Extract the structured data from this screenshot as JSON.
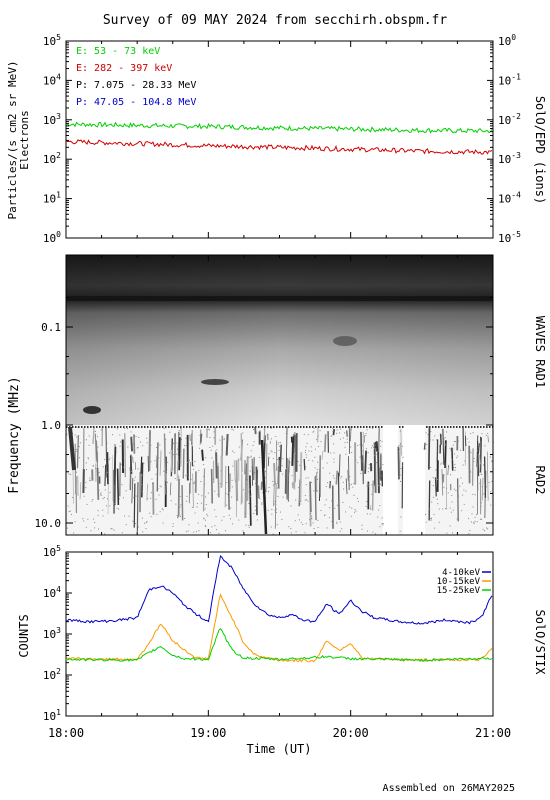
{
  "title": "Survey of 09 MAY 2024 from secchirh.obspm.fr",
  "footer": "Assembled on 26MAY2025",
  "colors": {
    "green": "#00d000",
    "red": "#d00000",
    "black": "#000000",
    "blue": "#0000c8",
    "orange": "#ff9900"
  },
  "chart_data": [
    {
      "type": "line",
      "name": "epd",
      "ylabel": "Particles/(s cm2 sr MeV)",
      "ylabel2": "Electrons",
      "right_label": "SolO/EPD (ions)",
      "yscale": "log",
      "ylim": [
        1,
        100000
      ],
      "y_ticks": [
        1,
        10,
        100,
        1000,
        10000,
        100000
      ],
      "y_tick_labels": [
        {
          "base": "10",
          "exp": "0"
        },
        {
          "base": "10",
          "exp": "1"
        },
        {
          "base": "10",
          "exp": "2"
        },
        {
          "base": "10",
          "exp": "3"
        },
        {
          "base": "10",
          "exp": "4"
        },
        {
          "base": "10",
          "exp": "5"
        }
      ],
      "y2_ticks": [
        1e-05,
        0.0001,
        0.001,
        0.01,
        0.1,
        1
      ],
      "y2_tick_labels": [
        {
          "base": "10",
          "exp": "-5"
        },
        {
          "base": "10",
          "exp": "-4"
        },
        {
          "base": "10",
          "exp": "-3"
        },
        {
          "base": "10",
          "exp": "-2"
        },
        {
          "base": "10",
          "exp": "-1"
        },
        {
          "base": "10",
          "exp": "0"
        }
      ],
      "legend": [
        {
          "text": "E: 53 - 73 keV",
          "color": "#00d000"
        },
        {
          "text": "E: 282 - 397 keV",
          "color": "#d00000"
        },
        {
          "text": "P: 7.075 - 28.33 MeV",
          "color": "#000000"
        },
        {
          "text": "P: 47.05 - 104.8 MeV",
          "color": "#0000c8"
        }
      ],
      "series": [
        {
          "name": "E: 53 - 73 keV",
          "color": "#00d000",
          "x": [
            "18:00",
            "18:30",
            "19:00",
            "19:30",
            "20:00",
            "20:30",
            "21:00"
          ],
          "values": [
            780,
            720,
            680,
            620,
            580,
            540,
            520
          ]
        },
        {
          "name": "E: 282 - 397 keV",
          "color": "#d00000",
          "x": [
            "18:00",
            "18:30",
            "19:00",
            "19:30",
            "20:00",
            "20:30",
            "21:00"
          ],
          "values": [
            280,
            250,
            220,
            200,
            180,
            160,
            150
          ]
        }
      ]
    },
    {
      "type": "heatmap",
      "name": "waves",
      "ylabel": "Frequency (MHz)",
      "right_label_top": "WAVES RAD1",
      "right_label_bottom": "RAD2",
      "yscale": "log",
      "y_ticks": [
        0.1,
        1.0,
        10.0
      ],
      "y_tick_labels": [
        "0.1",
        "1.0",
        "10.0"
      ]
    },
    {
      "type": "line",
      "name": "stix",
      "ylabel": "COUNTS",
      "right_label": "SolO/STIX",
      "yscale": "log",
      "ylim": [
        10,
        100000
      ],
      "y_ticks": [
        10,
        100,
        1000,
        10000,
        100000
      ],
      "y_tick_labels": [
        {
          "base": "10",
          "exp": "1"
        },
        {
          "base": "10",
          "exp": "2"
        },
        {
          "base": "10",
          "exp": "3"
        },
        {
          "base": "10",
          "exp": "4"
        },
        {
          "base": "10",
          "exp": "5"
        }
      ],
      "xlabel": "Time (UT)",
      "x_tick_labels": [
        "18:00",
        "19:00",
        "20:00",
        "21:00"
      ],
      "legend": [
        {
          "text": "4-10keV",
          "color": "#0000c8"
        },
        {
          "text": "10-15keV",
          "color": "#ff9900"
        },
        {
          "text": "15-25keV",
          "color": "#00d000"
        }
      ],
      "series": [
        {
          "name": "4-10keV",
          "color": "#0000c8",
          "x": [
            "18:00",
            "18:10",
            "18:20",
            "18:30",
            "18:35",
            "18:40",
            "18:45",
            "18:50",
            "18:55",
            "19:00",
            "19:05",
            "19:10",
            "19:15",
            "19:20",
            "19:25",
            "19:30",
            "19:35",
            "19:40",
            "19:45",
            "19:50",
            "19:55",
            "20:00",
            "20:05",
            "20:10",
            "20:20",
            "20:30",
            "20:40",
            "20:50",
            "20:55",
            "21:00"
          ],
          "values": [
            2200,
            2000,
            2100,
            2500,
            12000,
            15000,
            10000,
            5000,
            3000,
            2000,
            80000,
            40000,
            12000,
            5000,
            3000,
            2500,
            3000,
            2200,
            2000,
            5500,
            3000,
            6500,
            3500,
            2500,
            2000,
            1800,
            2200,
            1900,
            2500,
            10000
          ]
        },
        {
          "name": "10-15keV",
          "color": "#ff9900",
          "x": [
            "18:00",
            "18:30",
            "18:35",
            "18:40",
            "18:45",
            "18:50",
            "18:55",
            "19:00",
            "19:05",
            "19:10",
            "19:15",
            "19:20",
            "19:30",
            "19:45",
            "19:50",
            "19:55",
            "20:00",
            "20:05",
            "20:30",
            "20:55",
            "21:00"
          ],
          "values": [
            250,
            240,
            600,
            1800,
            700,
            400,
            260,
            250,
            9000,
            2500,
            600,
            300,
            230,
            220,
            700,
            400,
            600,
            250,
            230,
            240,
            500
          ]
        },
        {
          "name": "15-25keV",
          "color": "#00d000",
          "x": [
            "18:00",
            "18:30",
            "18:35",
            "18:40",
            "18:45",
            "18:50",
            "19:00",
            "19:05",
            "19:10",
            "19:15",
            "19:30",
            "19:50",
            "20:00",
            "20:30",
            "21:00"
          ],
          "values": [
            240,
            230,
            350,
            500,
            300,
            250,
            240,
            1400,
            400,
            260,
            240,
            280,
            250,
            230,
            260
          ]
        }
      ]
    }
  ]
}
